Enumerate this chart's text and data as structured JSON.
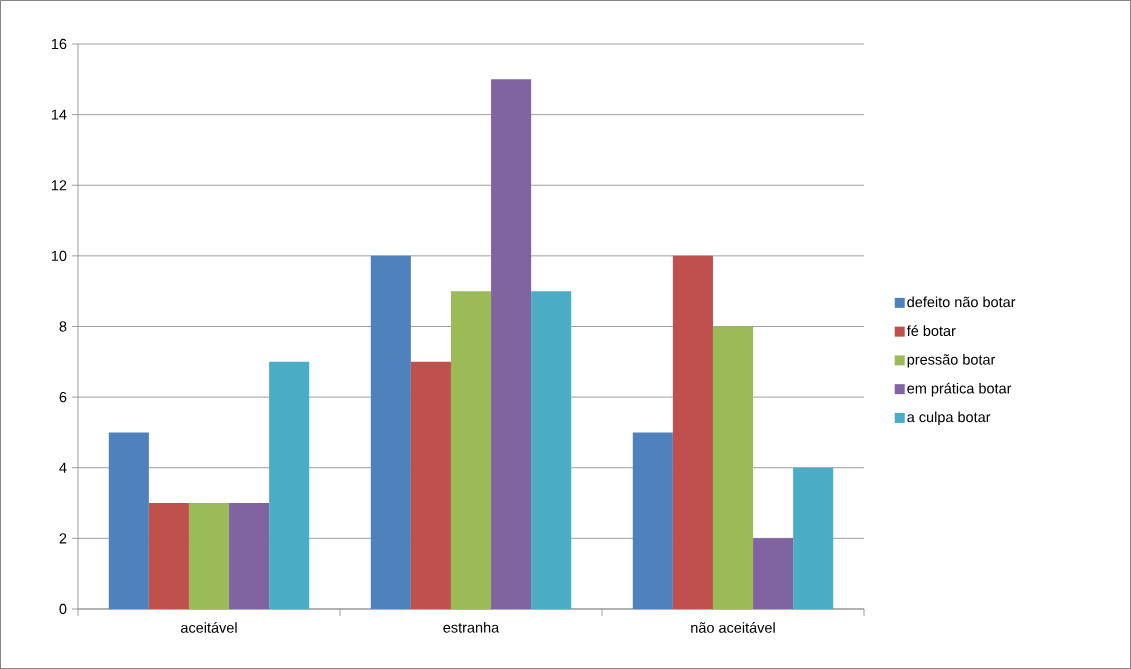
{
  "chart_data": {
    "type": "bar",
    "categories": [
      "aceitável",
      "estranha",
      "não aceitável"
    ],
    "series": [
      {
        "name": "defeito não botar",
        "color": "#4f81bd",
        "values": [
          5,
          10,
          5
        ]
      },
      {
        "name": "fé  botar",
        "color": "#c0504d",
        "values": [
          3,
          7,
          10
        ]
      },
      {
        "name": "pressão  botar",
        "color": "#9bbb59",
        "values": [
          3,
          9,
          8
        ]
      },
      {
        "name": "em prática botar",
        "color": "#8064a2",
        "values": [
          3,
          15,
          2
        ]
      },
      {
        "name": "a culpa botar",
        "color": "#4bacc6",
        "values": [
          7,
          9,
          4
        ]
      }
    ],
    "ylim": [
      0,
      16
    ],
    "yticks": [
      0,
      2,
      4,
      6,
      8,
      10,
      12,
      14,
      16
    ],
    "grid": "y",
    "legend": "right"
  }
}
